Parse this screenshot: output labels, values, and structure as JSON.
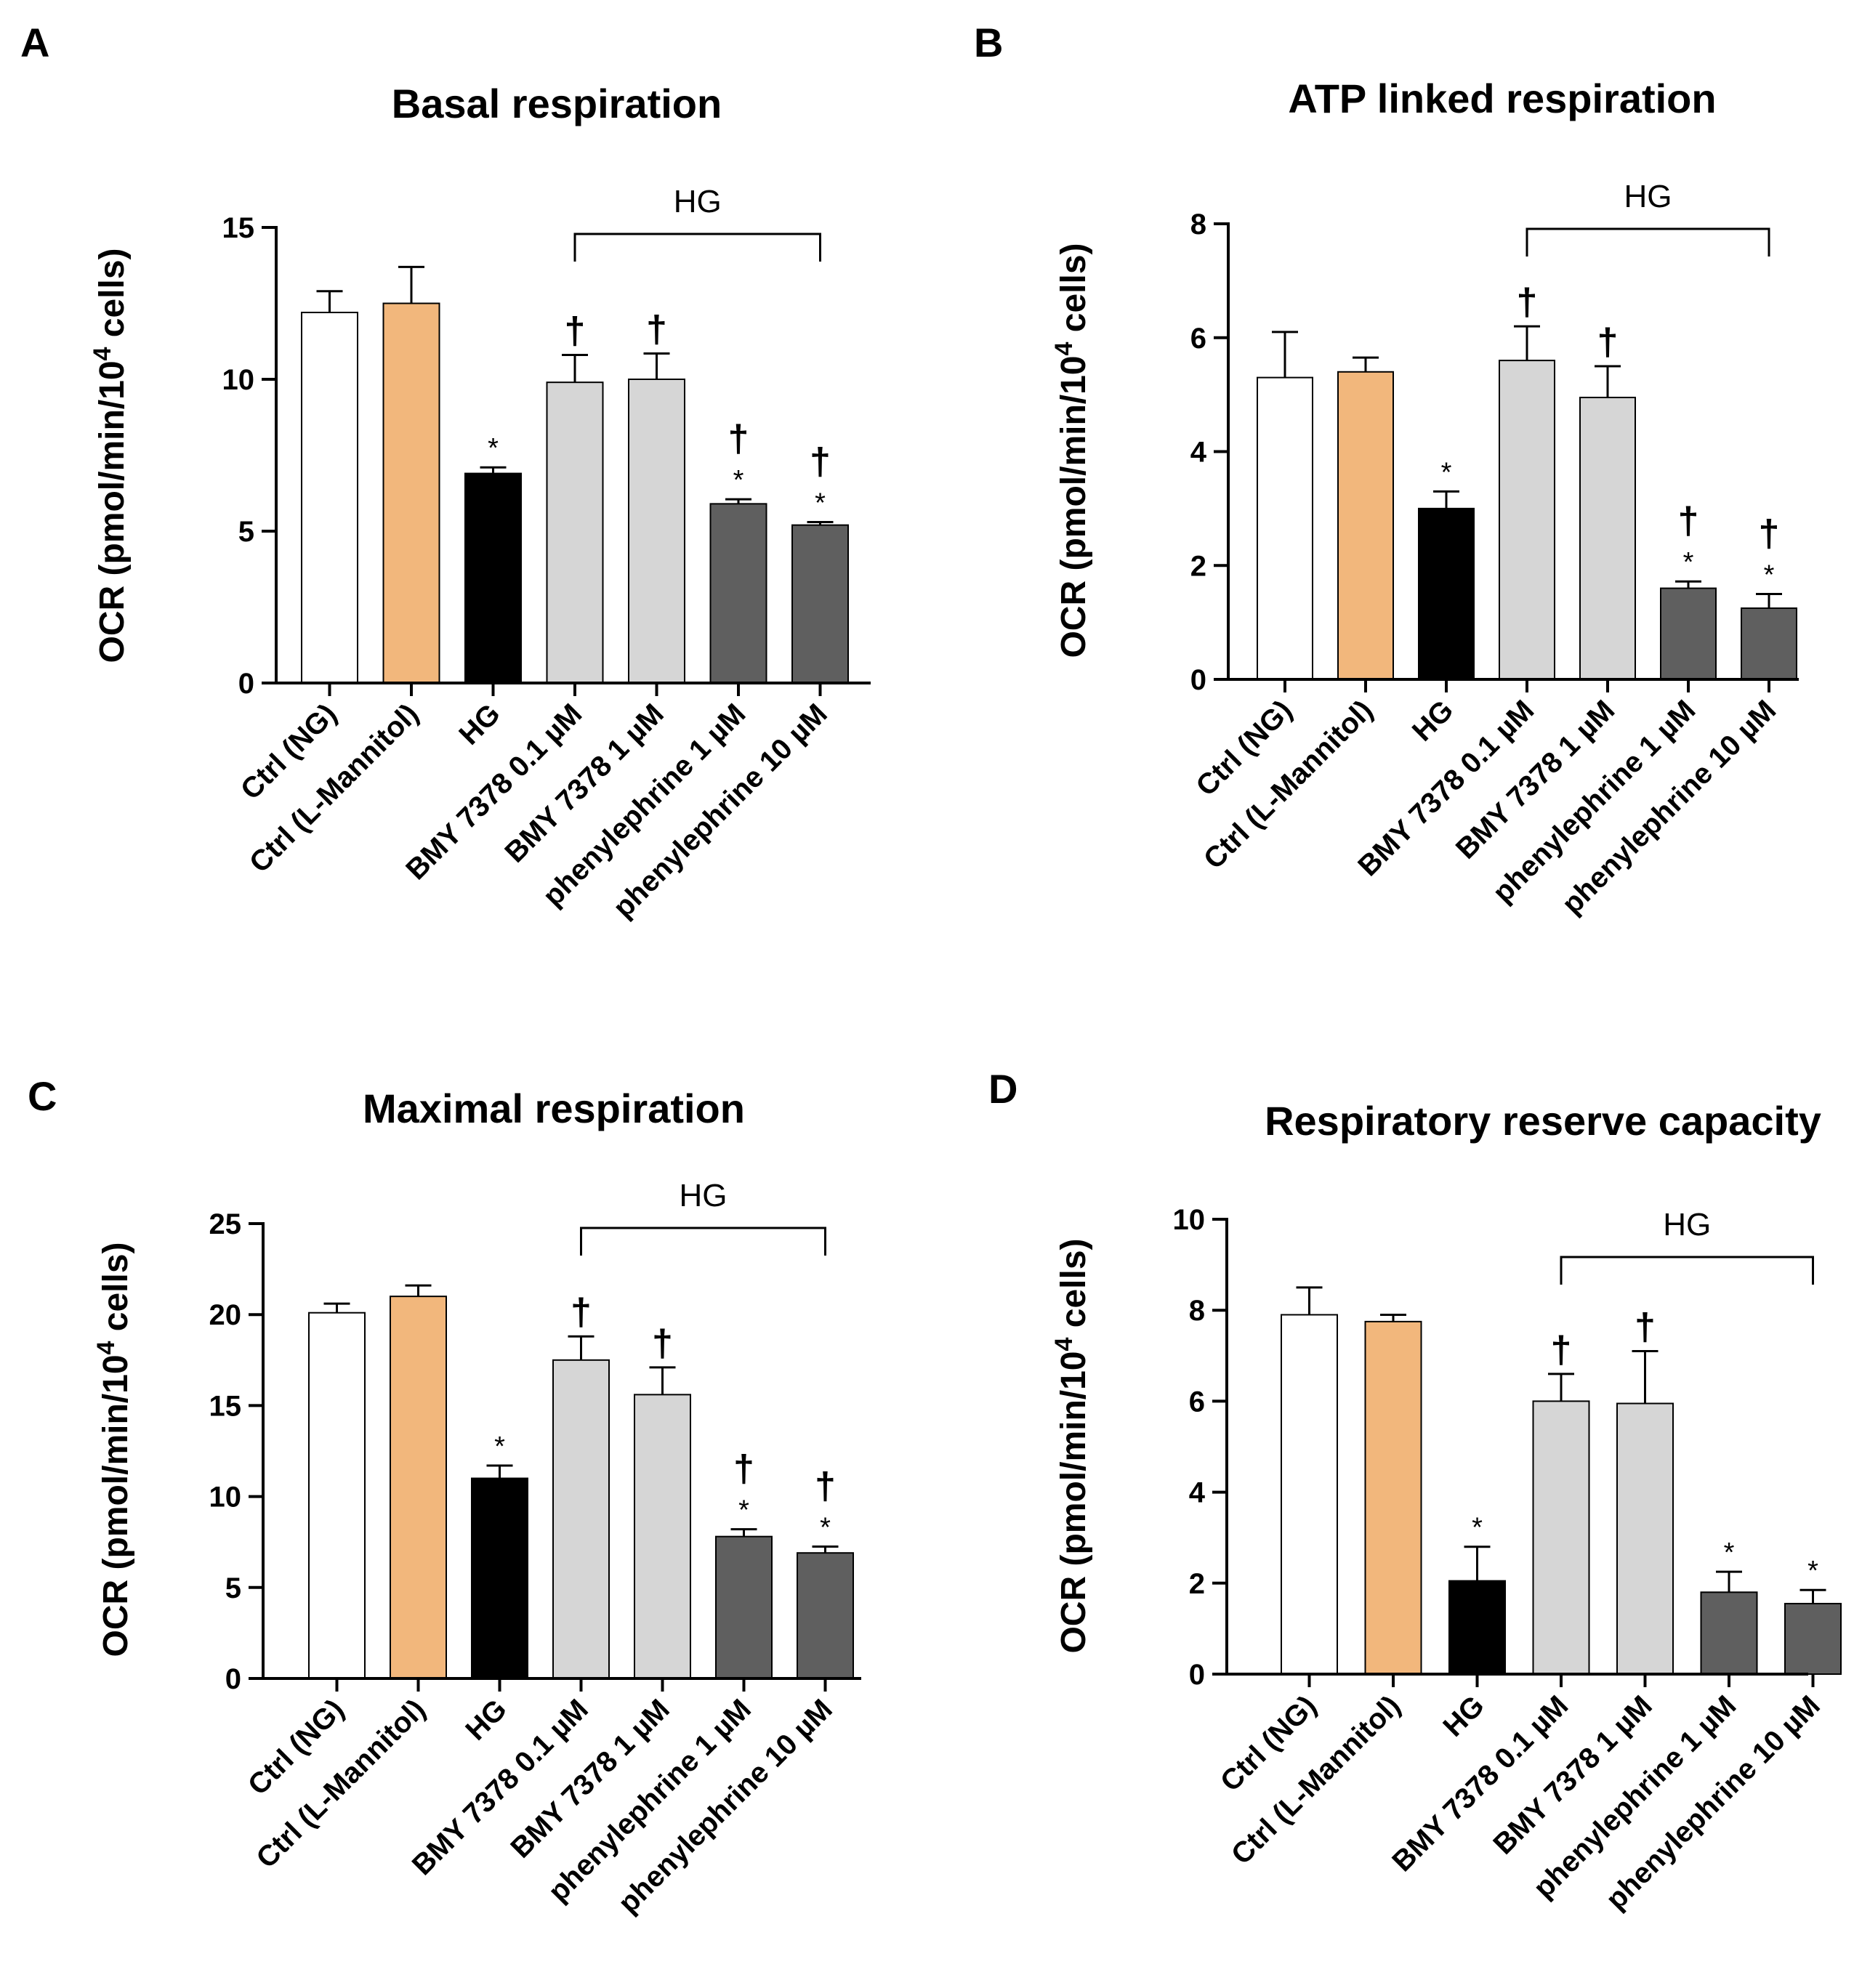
{
  "figure": {
    "group_label": "HG",
    "ylabel_parts": [
      "OCR (pmol/min/10",
      "4",
      " cells)"
    ]
  },
  "chart_data": [
    {
      "panel": "A",
      "type": "bar",
      "title": "Basal respiration",
      "categories": [
        "Ctrl (NG)",
        "Ctrl (L-Mannitol)",
        "HG",
        "BMY 7378 0.1 µM",
        "BMY 7378 1 µM",
        "phenylephrine 1 µM",
        "phenylephrine 10 µM"
      ],
      "values": [
        12.2,
        12.5,
        6.9,
        9.9,
        10.0,
        5.9,
        5.2
      ],
      "errors": [
        0.7,
        1.2,
        0.2,
        0.9,
        0.85,
        0.15,
        0.1
      ],
      "star": [
        false,
        false,
        true,
        false,
        false,
        true,
        true
      ],
      "dagger": [
        false,
        false,
        false,
        true,
        true,
        true,
        true
      ],
      "ylim": [
        0,
        15
      ],
      "yticks": [
        0,
        5,
        10,
        15
      ],
      "bracket": [
        3,
        6
      ],
      "colors": [
        "#ffffff",
        "#f2b77c",
        "#000000",
        "#d6d6d6",
        "#d6d6d6",
        "#5f5f5f",
        "#5f5f5f"
      ]
    },
    {
      "panel": "B",
      "type": "bar",
      "title": "ATP linked respiration",
      "categories": [
        "Ctrl (NG)",
        "Ctrl (L-Mannitol)",
        "HG",
        "BMY 7378 0.1 µM",
        "BMY 7378 1 µM",
        "phenylephrine 1 µM",
        "phenylephrine 10 µM"
      ],
      "values": [
        5.3,
        5.4,
        3.0,
        5.6,
        4.95,
        1.6,
        1.25
      ],
      "errors": [
        0.8,
        0.25,
        0.3,
        0.6,
        0.55,
        0.12,
        0.25
      ],
      "star": [
        false,
        false,
        true,
        false,
        false,
        true,
        true
      ],
      "dagger": [
        false,
        false,
        false,
        true,
        true,
        true,
        true
      ],
      "ylim": [
        0,
        8
      ],
      "yticks": [
        0,
        2,
        4,
        6,
        8
      ],
      "bracket": [
        3,
        6
      ],
      "colors": [
        "#ffffff",
        "#f2b77c",
        "#000000",
        "#d6d6d6",
        "#d6d6d6",
        "#5f5f5f",
        "#5f5f5f"
      ]
    },
    {
      "panel": "C",
      "type": "bar",
      "title": "Maximal respiration",
      "categories": [
        "Ctrl (NG)",
        "Ctrl (L-Mannitol)",
        "HG",
        "BMY 7378 0.1 µM",
        "BMY 7378 1 µM",
        "phenylephrine 1 µM",
        "phenylephrine 10 µM"
      ],
      "values": [
        20.1,
        21.0,
        11.0,
        17.5,
        15.6,
        7.8,
        6.9
      ],
      "errors": [
        0.5,
        0.6,
        0.7,
        1.3,
        1.5,
        0.4,
        0.35
      ],
      "star": [
        false,
        false,
        true,
        false,
        false,
        true,
        true
      ],
      "dagger": [
        false,
        false,
        false,
        true,
        true,
        true,
        true
      ],
      "ylim": [
        0,
        25
      ],
      "yticks": [
        0,
        5,
        10,
        15,
        20,
        25
      ],
      "bracket": [
        3,
        6
      ],
      "colors": [
        "#ffffff",
        "#f2b77c",
        "#000000",
        "#d6d6d6",
        "#d6d6d6",
        "#5f5f5f",
        "#5f5f5f"
      ]
    },
    {
      "panel": "D",
      "type": "bar",
      "title": "Respiratory reserve capacity",
      "categories": [
        "Ctrl (NG)",
        "Ctrl (L-Mannitol)",
        "HG",
        "BMY 7378 0.1 µM",
        "BMY 7378 1 µM",
        "phenylephrine 1 µM",
        "phenylephrine 10 µM"
      ],
      "values": [
        7.9,
        7.75,
        2.05,
        6.0,
        5.95,
        1.8,
        1.55
      ],
      "errors": [
        0.6,
        0.15,
        0.75,
        0.6,
        1.15,
        0.45,
        0.3
      ],
      "star": [
        false,
        false,
        true,
        false,
        false,
        true,
        true
      ],
      "dagger": [
        false,
        false,
        false,
        true,
        true,
        false,
        false
      ],
      "ylim": [
        0,
        10
      ],
      "yticks": [
        0,
        2,
        4,
        6,
        8,
        10
      ],
      "bracket": [
        3,
        6
      ],
      "colors": [
        "#ffffff",
        "#f2b77c",
        "#000000",
        "#d6d6d6",
        "#d6d6d6",
        "#5f5f5f",
        "#5f5f5f"
      ]
    }
  ]
}
